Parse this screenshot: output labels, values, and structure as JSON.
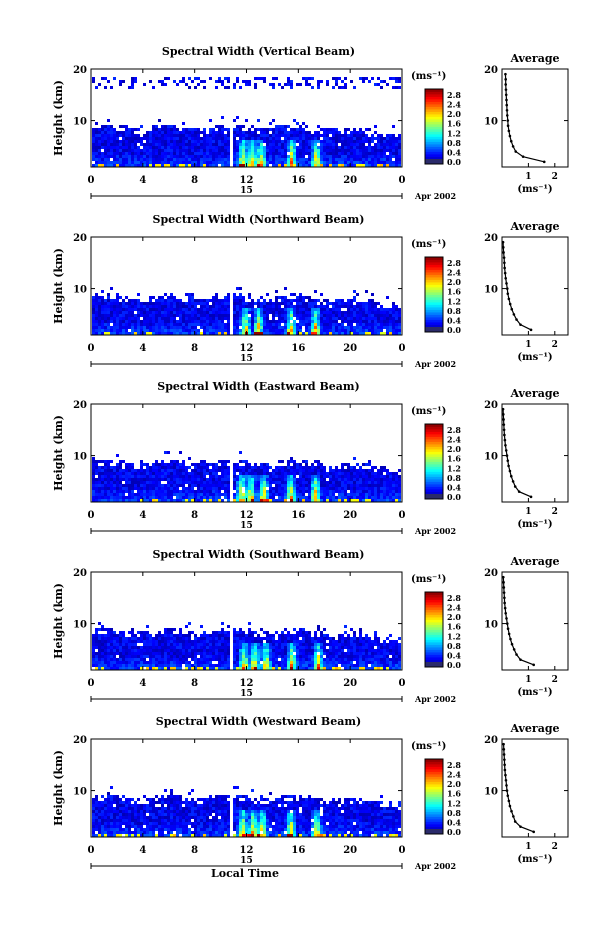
{
  "figure": {
    "xlabel": "Local Time",
    "colorbar_unit": "(ms⁻¹)",
    "avg_title": "Average",
    "avg_xlabel": "(ms⁻¹)",
    "ylabel": "Height (km)",
    "date_label": "Apr 2002",
    "day_label": "15"
  },
  "chart_data": [
    {
      "type": "heatmap",
      "title": "Spectral Width (Vertical Beam)",
      "ylabel": "Height (km)",
      "x_ticks": [
        "0",
        "4",
        "8",
        "12",
        "16",
        "20",
        "0"
      ],
      "xlim": [
        0,
        24
      ],
      "y_ticks": [
        "20",
        "10"
      ],
      "ylim": [
        1,
        20
      ],
      "colorbar": {
        "unit": "(ms⁻¹)",
        "ticks": [
          "2.8",
          "2.4",
          "2.0",
          "1.6",
          "1.2",
          "0.8",
          "0.4",
          "0.0"
        ],
        "range": [
          0,
          3.0
        ]
      },
      "top_km_main": 9.3,
      "sparse_layer_km": [
        17,
        18
      ],
      "data_gap_hour": 10.8,
      "convective_bursts_hour": [
        11.6,
        12.3,
        13.0,
        15.4,
        17.3
      ],
      "profile": {
        "title": "Average",
        "xlabel": "(ms⁻¹)",
        "x_ticks": [
          "1",
          "2"
        ],
        "xlim": [
          0,
          2.5
        ],
        "y_ticks": [
          "20",
          "10"
        ],
        "height_km": [
          2,
          3,
          4,
          5,
          6,
          7,
          8,
          9,
          10,
          11,
          12,
          13,
          14,
          15,
          16,
          17,
          18,
          19
        ],
        "value_ms": [
          1.6,
          0.8,
          0.52,
          0.42,
          0.35,
          0.3,
          0.26,
          0.23,
          0.22,
          0.2,
          0.19,
          0.18,
          0.17,
          0.16,
          0.15,
          0.14,
          0.14,
          0.13
        ]
      }
    },
    {
      "type": "heatmap",
      "title": "Spectral Width (Northward Beam)",
      "ylabel": "Height (km)",
      "x_ticks": [
        "0",
        "4",
        "8",
        "12",
        "16",
        "20",
        "0"
      ],
      "xlim": [
        0,
        24
      ],
      "y_ticks": [
        "20",
        "10"
      ],
      "ylim": [
        1,
        20
      ],
      "colorbar": {
        "unit": "(ms⁻¹)",
        "ticks": [
          "2.8",
          "2.4",
          "2.0",
          "1.6",
          "1.2",
          "0.8",
          "0.4",
          "0.0"
        ],
        "range": [
          0,
          3.0
        ]
      },
      "top_km_main": 8.8,
      "sparse_layer_km": [],
      "data_gap_hour": 10.8,
      "convective_bursts_hour": [
        11.8,
        12.8,
        15.3,
        17.2
      ],
      "profile": {
        "title": "Average",
        "xlabel": "(ms⁻¹)",
        "x_ticks": [
          "1",
          "2"
        ],
        "xlim": [
          0,
          2.5
        ],
        "y_ticks": [
          "20",
          "10"
        ],
        "height_km": [
          2,
          3,
          4,
          5,
          6,
          7,
          8,
          9,
          10,
          11,
          12,
          13,
          14,
          15,
          16,
          17,
          18,
          19
        ],
        "value_ms": [
          1.1,
          0.7,
          0.55,
          0.45,
          0.37,
          0.31,
          0.26,
          0.22,
          0.2,
          0.17,
          0.14,
          0.12,
          0.1,
          0.09,
          0.08,
          0.06,
          0.05,
          0.04
        ]
      }
    },
    {
      "type": "heatmap",
      "title": "Spectral Width (Eastward Beam)",
      "ylabel": "Height (km)",
      "x_ticks": [
        "0",
        "4",
        "8",
        "12",
        "16",
        "20",
        "0"
      ],
      "xlim": [
        0,
        24
      ],
      "y_ticks": [
        "20",
        "10"
      ],
      "ylim": [
        1,
        20
      ],
      "colorbar": {
        "unit": "(ms⁻¹)",
        "ticks": [
          "2.8",
          "2.4",
          "2.0",
          "1.6",
          "1.2",
          "0.8",
          "0.4",
          "0.0"
        ],
        "range": [
          0,
          3.0
        ]
      },
      "top_km_main": 9.2,
      "sparse_layer_km": [],
      "data_gap_hour": 10.8,
      "convective_bursts_hour": [
        11.5,
        12.2,
        13.2,
        15.3,
        17.2
      ],
      "profile": {
        "title": "Average",
        "xlabel": "(ms⁻¹)",
        "x_ticks": [
          "1",
          "2"
        ],
        "xlim": [
          0,
          2.5
        ],
        "y_ticks": [
          "20",
          "10"
        ],
        "height_km": [
          2,
          3,
          4,
          5,
          6,
          7,
          8,
          9,
          10,
          11,
          12,
          13,
          14,
          15,
          16,
          17,
          18,
          19
        ],
        "value_ms": [
          1.1,
          0.65,
          0.5,
          0.42,
          0.35,
          0.3,
          0.25,
          0.22,
          0.19,
          0.16,
          0.13,
          0.11,
          0.09,
          0.08,
          0.07,
          0.06,
          0.05,
          0.04
        ]
      }
    },
    {
      "type": "heatmap",
      "title": "Spectral Width (Southward Beam)",
      "ylabel": "Height (km)",
      "x_ticks": [
        "0",
        "4",
        "8",
        "12",
        "16",
        "20",
        "0"
      ],
      "xlim": [
        0,
        24
      ],
      "y_ticks": [
        "20",
        "10"
      ],
      "ylim": [
        1,
        20
      ],
      "colorbar": {
        "unit": "(ms⁻¹)",
        "ticks": [
          "2.8",
          "2.4",
          "2.0",
          "1.6",
          "1.2",
          "0.8",
          "0.4",
          "0.0"
        ],
        "range": [
          0,
          3.0
        ]
      },
      "top_km_main": 9.0,
      "sparse_layer_km": [],
      "data_gap_hour": 10.8,
      "convective_bursts_hour": [
        11.7,
        12.5,
        13.4,
        15.4,
        17.4
      ],
      "profile": {
        "title": "Average",
        "xlabel": "(ms⁻¹)",
        "x_ticks": [
          "1",
          "2"
        ],
        "xlim": [
          0,
          2.5
        ],
        "y_ticks": [
          "20",
          "10"
        ],
        "height_km": [
          2,
          3,
          4,
          5,
          6,
          7,
          8,
          9,
          10,
          11,
          12,
          13,
          14,
          15,
          16,
          17,
          18,
          19
        ],
        "value_ms": [
          1.2,
          0.7,
          0.55,
          0.46,
          0.38,
          0.32,
          0.27,
          0.23,
          0.2,
          0.17,
          0.14,
          0.12,
          0.1,
          0.09,
          0.08,
          0.07,
          0.06,
          0.05
        ]
      }
    },
    {
      "type": "heatmap",
      "title": "Spectral Width (Westward Beam)",
      "ylabel": "Height (km)",
      "x_ticks": [
        "0",
        "4",
        "8",
        "12",
        "16",
        "20",
        "0"
      ],
      "xlim": [
        0,
        24
      ],
      "y_ticks": [
        "20",
        "10"
      ],
      "ylim": [
        1,
        20
      ],
      "colorbar": {
        "unit": "(ms⁻¹)",
        "ticks": [
          "2.8",
          "2.4",
          "2.0",
          "1.6",
          "1.2",
          "0.8",
          "0.4",
          "0.0"
        ],
        "range": [
          0,
          3.0
        ]
      },
      "top_km_main": 9.2,
      "sparse_layer_km": [],
      "data_gap_hour": 10.8,
      "convective_bursts_hour": [
        11.6,
        12.4,
        13.1,
        15.3,
        17.3
      ],
      "profile": {
        "title": "Average",
        "xlabel": "(ms⁻¹)",
        "x_ticks": [
          "1",
          "2"
        ],
        "xlim": [
          0,
          2.5
        ],
        "y_ticks": [
          "20",
          "10"
        ],
        "height_km": [
          2,
          3,
          4,
          5,
          6,
          7,
          8,
          9,
          10,
          11,
          12,
          13,
          14,
          15,
          16,
          17,
          18,
          19
        ],
        "value_ms": [
          1.2,
          0.7,
          0.5,
          0.43,
          0.36,
          0.3,
          0.26,
          0.22,
          0.19,
          0.17,
          0.15,
          0.13,
          0.11,
          0.1,
          0.09,
          0.08,
          0.07,
          0.06
        ]
      }
    }
  ]
}
